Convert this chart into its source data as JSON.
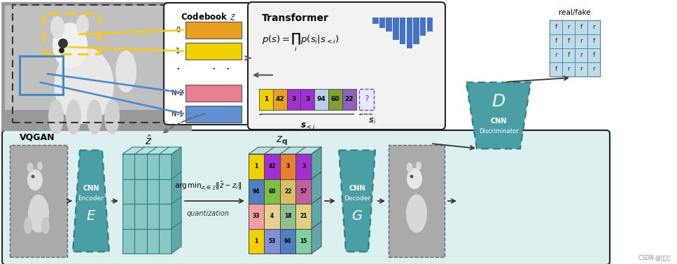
{
  "bg_color": "#ffffff",
  "light_teal": "#7bbfbf",
  "teal": "#4a9fa5",
  "dark_teal": "#2e7d82",
  "vqgan_bg": "#ddf0f0",
  "codebook_colors": [
    "#e8a020",
    "#f0d000",
    "#e88090",
    "#6090d0"
  ],
  "token_colors": [
    "#f0d000",
    "#e8a020",
    "#a030d0",
    "#a030d0",
    "#b8d0e8",
    "#80a030",
    "#9060c0"
  ],
  "grid_colors_zq": [
    [
      "#f0d000",
      "#a030d0",
      "#e88030",
      "#a030d0"
    ],
    [
      "#5080c0",
      "#80c040",
      "#d8c060",
      "#c060a0"
    ],
    [
      "#f0a0a0",
      "#e8d090",
      "#90c090",
      "#e0d080"
    ],
    [
      "#f0d000",
      "#8090d0",
      "#5080c0",
      "#80d0a0"
    ]
  ],
  "zq_values": [
    [
      "1",
      "42",
      "3",
      "3"
    ],
    [
      "94",
      "60",
      "22",
      "57"
    ],
    [
      "33",
      "4",
      "18",
      "21"
    ],
    [
      "1",
      "53",
      "94",
      "15"
    ]
  ],
  "bar_heights": [
    1.5,
    2.5,
    3.5,
    5.5,
    6.5,
    7.5,
    6.5,
    4.5,
    3.5
  ],
  "bar_color": "#4472c4",
  "grid_rf": [
    [
      "f",
      "r",
      "f",
      "r"
    ],
    [
      "f",
      "f",
      "r",
      "f"
    ],
    [
      "r",
      "f",
      "r",
      "f"
    ],
    [
      "f",
      "r",
      "r",
      "r"
    ]
  ],
  "zhat_color": "#8ac8c8",
  "zhat_top_color": "#b8e0e0",
  "zhat_right_color": "#60a8a8"
}
